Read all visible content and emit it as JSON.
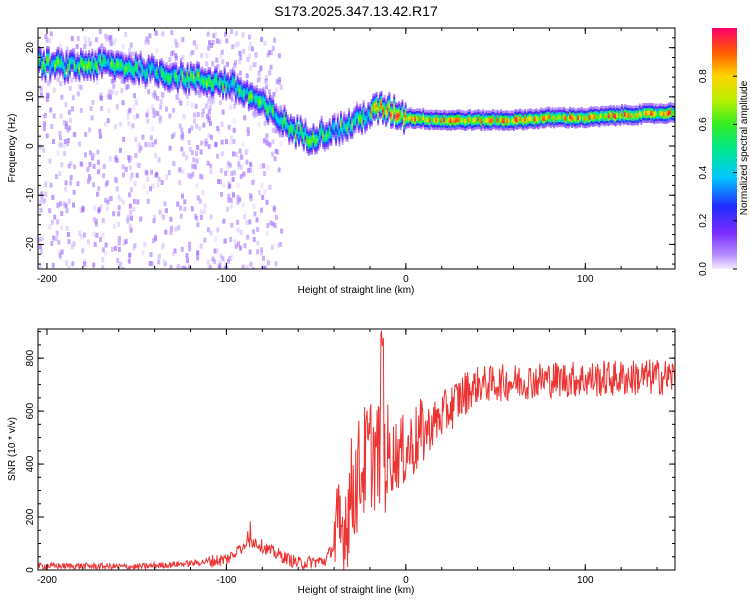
{
  "figure_title": "S173.2025.347.13.42.R17",
  "chart_data": [
    {
      "type": "heatmap",
      "xlabel": "Height of straight line (km)",
      "ylabel": "Frequency (Hz)",
      "xlim": [
        -205,
        150
      ],
      "ylim": [
        -25,
        24
      ],
      "xticks": [
        -200,
        -100,
        0,
        100
      ],
      "yticks": [
        -20,
        -10,
        0,
        10,
        20
      ],
      "colorbar": {
        "label": "Normalized spectral amplitude",
        "range": [
          0,
          1
        ],
        "ticks": [
          0.0,
          0.2,
          0.4,
          0.6,
          0.8
        ]
      },
      "ridge": {
        "x": [
          -205,
          -190,
          -170,
          -150,
          -135,
          -120,
          -100,
          -85,
          -75,
          -65,
          -55,
          -45,
          -35,
          -25,
          -15,
          -5,
          0,
          20,
          40,
          60,
          80,
          100,
          120,
          150
        ],
        "y": [
          17,
          16.5,
          17,
          16,
          15,
          14,
          13,
          10,
          7,
          4,
          2,
          3,
          4,
          6,
          8,
          7,
          6,
          5.5,
          5.5,
          5.5,
          6,
          6,
          6.5,
          7
        ]
      }
    },
    {
      "type": "line",
      "xlabel": "Height of straight line (km)",
      "ylabel": "SNR (10 * v/v)",
      "xlim": [
        -205,
        150
      ],
      "ylim": [
        0,
        910
      ],
      "xticks": [
        -200,
        -100,
        0,
        100
      ],
      "yticks": [
        0,
        200,
        400,
        600,
        800
      ],
      "color": "#ee3333",
      "x": [
        -205,
        -180,
        -150,
        -120,
        -100,
        -85,
        -75,
        -60,
        -45,
        -35,
        -30,
        -25,
        -20,
        -15,
        -10,
        -5,
        0,
        10,
        20,
        30,
        40,
        60,
        80,
        100,
        120,
        150
      ],
      "y": [
        15,
        15,
        12,
        25,
        40,
        110,
        70,
        25,
        35,
        150,
        300,
        380,
        450,
        430,
        420,
        440,
        450,
        520,
        580,
        650,
        700,
        710,
        720,
        720,
        725,
        730
      ]
    }
  ]
}
